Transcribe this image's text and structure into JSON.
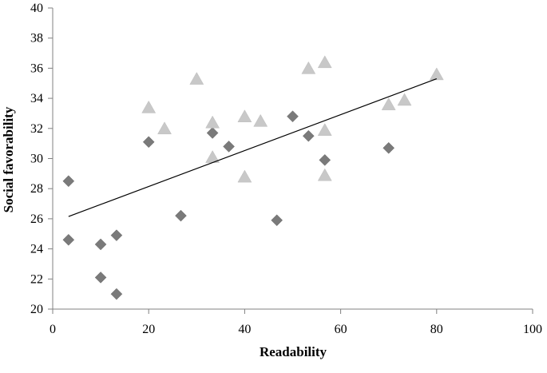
{
  "chart_data": {
    "type": "scatter",
    "xlabel": "Readability",
    "ylabel": "Social favorability",
    "xlim": [
      0,
      100
    ],
    "ylim": [
      20,
      40
    ],
    "xticks": [
      0,
      20,
      40,
      60,
      80,
      100
    ],
    "yticks": [
      20,
      22,
      24,
      26,
      28,
      30,
      32,
      34,
      36,
      38,
      40
    ],
    "xtick_labels": [
      "0",
      "20",
      "40",
      "60",
      "80",
      "100"
    ],
    "ytick_labels": [
      "20",
      "22",
      "24",
      "26",
      "28",
      "30",
      "32",
      "34",
      "36",
      "38",
      "40"
    ],
    "grid": false,
    "legend": "none",
    "series": [
      {
        "marker": "diamond",
        "color": "#7a7a7a",
        "points": [
          {
            "x": 3.3,
            "y": 28.5
          },
          {
            "x": 3.3,
            "y": 24.6
          },
          {
            "x": 10,
            "y": 24.3
          },
          {
            "x": 10,
            "y": 22.1
          },
          {
            "x": 13.3,
            "y": 24.9
          },
          {
            "x": 13.3,
            "y": 21.0
          },
          {
            "x": 20,
            "y": 31.1
          },
          {
            "x": 26.7,
            "y": 26.2
          },
          {
            "x": 33.3,
            "y": 31.7
          },
          {
            "x": 36.7,
            "y": 30.8
          },
          {
            "x": 46.7,
            "y": 25.9
          },
          {
            "x": 50,
            "y": 32.8
          },
          {
            "x": 53.3,
            "y": 31.5
          },
          {
            "x": 56.7,
            "y": 29.9
          },
          {
            "x": 70,
            "y": 30.7
          }
        ]
      },
      {
        "marker": "triangle",
        "color": "#c8c8c8",
        "points": [
          {
            "x": 20,
            "y": 33.4
          },
          {
            "x": 23.3,
            "y": 32.0
          },
          {
            "x": 30,
            "y": 35.3
          },
          {
            "x": 33.3,
            "y": 32.4
          },
          {
            "x": 33.3,
            "y": 30.1
          },
          {
            "x": 40,
            "y": 32.8
          },
          {
            "x": 40,
            "y": 28.8
          },
          {
            "x": 43.3,
            "y": 32.5
          },
          {
            "x": 53.3,
            "y": 36.0
          },
          {
            "x": 56.7,
            "y": 36.4
          },
          {
            "x": 56.7,
            "y": 31.9
          },
          {
            "x": 56.7,
            "y": 28.9
          },
          {
            "x": 70,
            "y": 33.6
          },
          {
            "x": 73.3,
            "y": 33.9
          },
          {
            "x": 80,
            "y": 35.6
          }
        ]
      }
    ],
    "trendline": {
      "color": "#000000",
      "points": [
        {
          "x": 3.3,
          "y": 26.15
        },
        {
          "x": 80,
          "y": 35.3
        }
      ]
    }
  }
}
